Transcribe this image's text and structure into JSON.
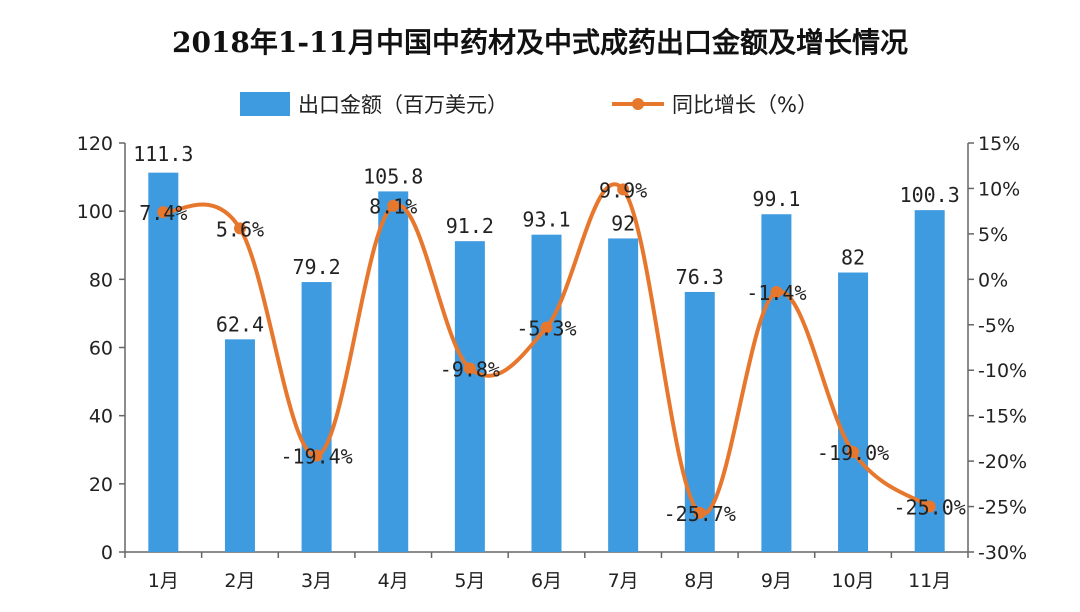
{
  "chart_data": {
    "type": "bar",
    "title": "2018年1-11月中国中药材及中式成药出口金额及增长情况",
    "categories": [
      "1月",
      "2月",
      "3月",
      "4月",
      "5月",
      "6月",
      "7月",
      "8月",
      "9月",
      "10月",
      "11月"
    ],
    "series": [
      {
        "name": "出口金额（百万美元）",
        "type": "bar",
        "axis": "left",
        "color": "#3f9be0",
        "values": [
          111.3,
          62.4,
          79.2,
          105.8,
          91.2,
          93.1,
          92,
          76.3,
          99.1,
          82,
          100.3
        ],
        "labels": [
          "111.3",
          "62.4",
          "79.2",
          "105.8",
          "91.2",
          "93.1",
          "92",
          "76.3",
          "99.1",
          "82",
          "100.3"
        ]
      },
      {
        "name": "同比增长（%）",
        "type": "line",
        "axis": "right",
        "color": "#e8772e",
        "values": [
          7.4,
          5.6,
          -19.4,
          8.1,
          -9.8,
          -5.3,
          9.9,
          -25.7,
          -1.4,
          -19.0,
          -25.0
        ],
        "labels": [
          "7.4%",
          "5.6%",
          "-19.4%",
          "8.1%",
          "-9.8%",
          "-5.3%",
          "9.9%",
          "-25.7%",
          "-1.4%",
          "-19.0%",
          "-25.0%"
        ]
      }
    ],
    "y_left": {
      "ylim": [
        0,
        120
      ],
      "ticks": [
        "0",
        "20",
        "40",
        "60",
        "80",
        "100",
        "120"
      ]
    },
    "y_right": {
      "ylim": [
        -30,
        15
      ],
      "ticks": [
        "-30%",
        "-25%",
        "-20%",
        "-15%",
        "-10%",
        "-5%",
        "0%",
        "5%",
        "10%",
        "15%"
      ]
    },
    "legend_position": "top-center",
    "grid": false
  }
}
